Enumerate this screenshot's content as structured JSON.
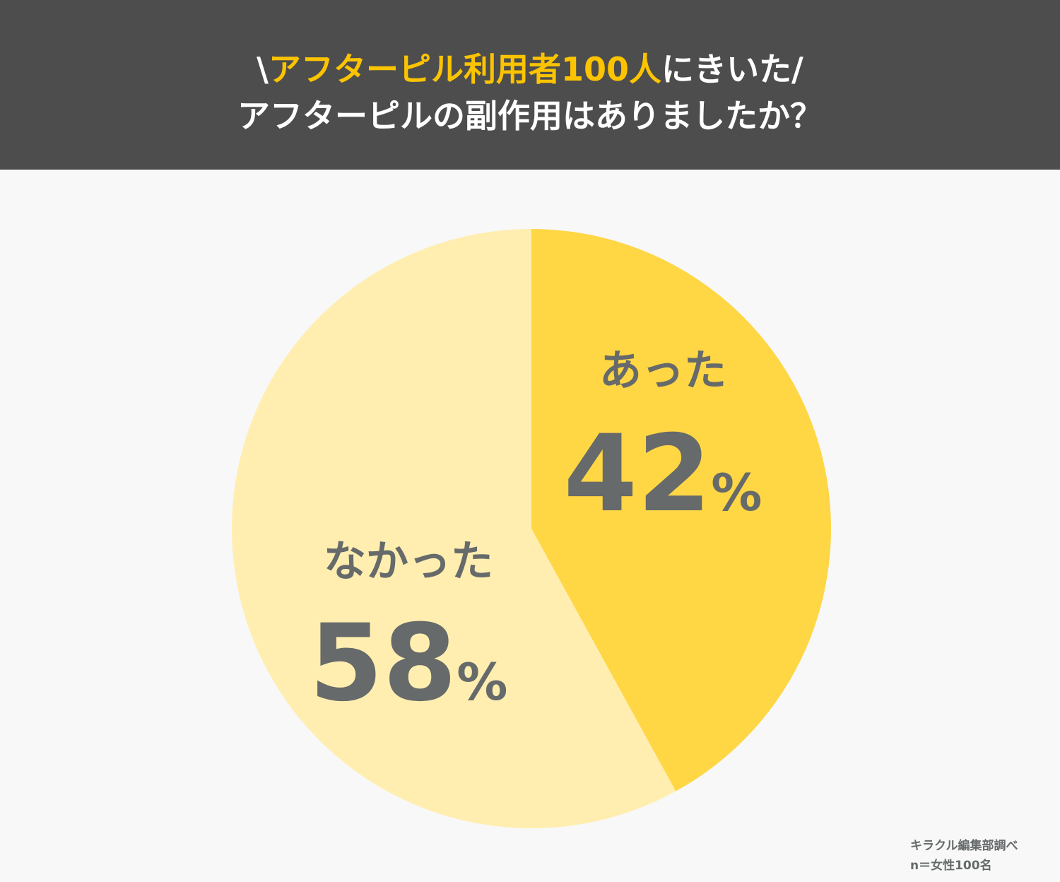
{
  "title": {
    "line1_prefix": "\\",
    "line1_highlight": "アフターピル利用者100人",
    "line1_suffix": "にきいた/",
    "line2": "アフターピルの副作用はありましたか？",
    "highlight_color": "#fcc400"
  },
  "chart_data": {
    "type": "pie",
    "title": "アフターピルの副作用はありましたか？",
    "start": "top",
    "direction": "clockwise",
    "slices": [
      {
        "label": "あった",
        "value": 42,
        "display": "42",
        "unit": "%",
        "color": "#ffd644"
      },
      {
        "label": "なかった",
        "value": 58,
        "display": "58",
        "unit": "%",
        "color": "#ffeeb0"
      }
    ],
    "label_color": "#666a6a"
  },
  "footer": {
    "source": "キラクル編集部調べ",
    "sample": "n＝女性100名"
  }
}
